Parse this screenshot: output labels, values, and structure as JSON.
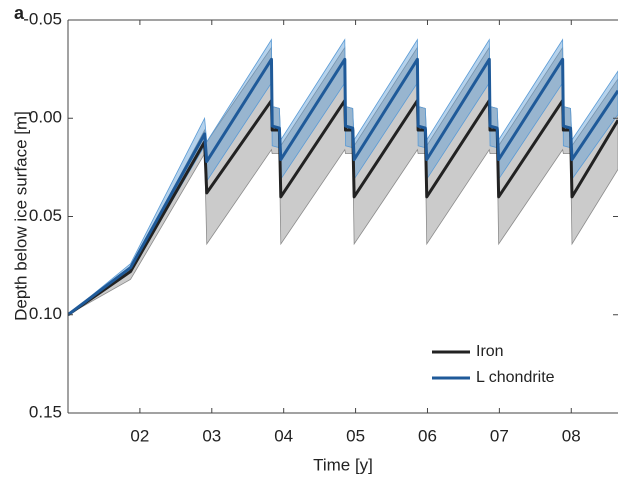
{
  "chart_data": {
    "type": "line",
    "panel_label": "a",
    "xlabel": "Time [y]",
    "ylabel": "Depth below ice surface [m]",
    "xlim": [
      1.0,
      8.65
    ],
    "ylim": [
      0.15,
      -0.05
    ],
    "xticks": [
      {
        "value": 2,
        "label": "02"
      },
      {
        "value": 3,
        "label": "03"
      },
      {
        "value": 4,
        "label": "04"
      },
      {
        "value": 5,
        "label": "05"
      },
      {
        "value": 6,
        "label": "06"
      },
      {
        "value": 7,
        "label": "07"
      },
      {
        "value": 8,
        "label": "08"
      }
    ],
    "yticks": [
      -0.05,
      {
        "value": 0,
        "label": "0.00"
      },
      0.05,
      {
        "value": 0.1,
        "label": "0.10"
      },
      0.15
    ],
    "legend": "lower right",
    "series": [
      {
        "name": "Iron",
        "color": "#222222",
        "band_color": "#8c8c8c",
        "x": [
          1.0,
          1.87,
          2.9,
          2.93,
          3.83,
          3.84,
          3.94,
          3.96,
          4.85,
          4.86,
          4.96,
          4.98,
          5.86,
          5.87,
          5.97,
          5.99,
          6.86,
          6.87,
          6.97,
          6.99,
          7.88,
          7.89,
          7.99,
          8.01,
          8.65
        ],
        "values": [
          0.1,
          0.078,
          0.012,
          0.038,
          -0.009,
          0.006,
          0.006,
          0.04,
          -0.009,
          0.006,
          0.006,
          0.04,
          -0.009,
          0.006,
          0.006,
          0.04,
          -0.009,
          0.006,
          0.006,
          0.04,
          -0.009,
          0.006,
          0.006,
          0.04,
          0.001
        ],
        "band_low": [
          0.1,
          0.076,
          0.006,
          0.012,
          -0.036,
          -0.006,
          -0.005,
          0.014,
          -0.036,
          -0.006,
          -0.005,
          0.014,
          -0.036,
          -0.006,
          -0.005,
          0.014,
          -0.036,
          -0.006,
          -0.005,
          0.014,
          -0.036,
          -0.006,
          -0.005,
          0.014,
          -0.02
        ],
        "band_high": [
          0.1,
          0.082,
          0.018,
          0.064,
          0.016,
          0.018,
          0.018,
          0.064,
          0.016,
          0.018,
          0.018,
          0.064,
          0.016,
          0.018,
          0.018,
          0.064,
          0.016,
          0.018,
          0.018,
          0.064,
          0.016,
          0.018,
          0.018,
          0.064,
          0.026
        ]
      },
      {
        "name": "L chondrite",
        "color": "#1f5a99",
        "band_color": "#5b9bd5",
        "x": [
          1.0,
          1.87,
          2.9,
          2.93,
          3.83,
          3.84,
          3.94,
          3.96,
          4.85,
          4.86,
          4.96,
          4.98,
          5.86,
          5.87,
          5.97,
          5.99,
          6.86,
          6.87,
          6.97,
          6.99,
          7.88,
          7.89,
          7.99,
          8.01,
          8.65
        ],
        "values": [
          0.1,
          0.076,
          0.008,
          0.022,
          -0.03,
          0.004,
          0.005,
          0.021,
          -0.03,
          0.004,
          0.005,
          0.021,
          -0.03,
          0.004,
          0.005,
          0.021,
          -0.03,
          0.004,
          0.005,
          0.021,
          -0.03,
          0.004,
          0.005,
          0.021,
          -0.014
        ],
        "band_low": [
          0.1,
          0.074,
          0.0,
          0.012,
          -0.04,
          -0.006,
          -0.005,
          0.011,
          -0.04,
          -0.006,
          -0.005,
          0.011,
          -0.04,
          -0.006,
          -0.005,
          0.011,
          -0.04,
          -0.006,
          -0.005,
          0.011,
          -0.04,
          -0.006,
          -0.005,
          0.011,
          -0.024
        ],
        "band_high": [
          0.1,
          0.078,
          0.014,
          0.032,
          -0.018,
          0.014,
          0.015,
          0.031,
          -0.018,
          0.014,
          0.015,
          0.031,
          -0.018,
          0.014,
          0.015,
          0.031,
          -0.018,
          0.014,
          0.015,
          0.031,
          -0.018,
          0.014,
          0.015,
          0.031,
          -0.002
        ]
      }
    ]
  }
}
